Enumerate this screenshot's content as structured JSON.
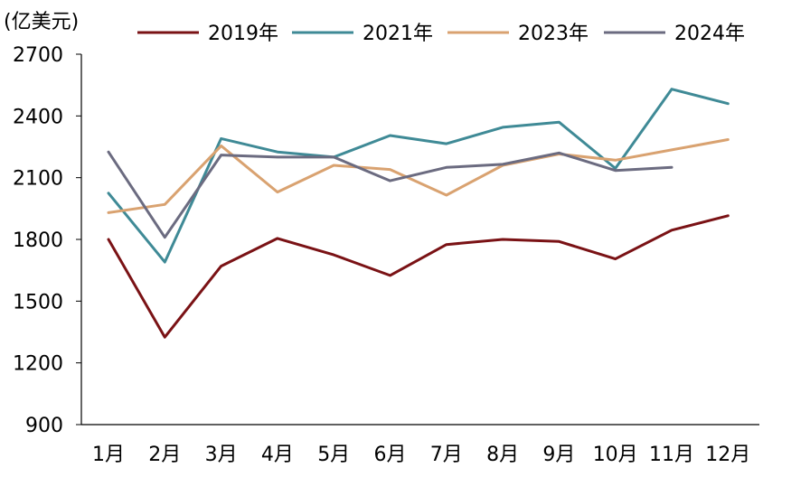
{
  "chart_data": {
    "type": "line",
    "unit_label": "(亿美元)",
    "categories": [
      "1月",
      "2月",
      "3月",
      "4月",
      "5月",
      "6月",
      "7月",
      "8月",
      "9月",
      "10月",
      "11月",
      "12月"
    ],
    "y_ticks": [
      "900",
      "1200",
      "1500",
      "1800",
      "2100",
      "2400",
      "2700"
    ],
    "ylim": [
      900,
      2700
    ],
    "grid": false,
    "legend_position": "top",
    "series": [
      {
        "name": "2019年",
        "color": "#7a1215",
        "values": [
          1800,
          1325,
          1670,
          1805,
          1725,
          1625,
          1775,
          1800,
          1790,
          1705,
          1845,
          1915
        ]
      },
      {
        "name": "2021年",
        "color": "#3f8a96",
        "values": [
          2025,
          1690,
          2290,
          2225,
          2200,
          2305,
          2265,
          2345,
          2370,
          2145,
          2530,
          2460
        ]
      },
      {
        "name": "2023年",
        "color": "#d9a270",
        "values": [
          1930,
          1970,
          2255,
          2030,
          2160,
          2140,
          2015,
          2160,
          2215,
          2185,
          2235,
          2285
        ]
      },
      {
        "name": "2024年",
        "color": "#6b6b80",
        "values": [
          2225,
          1810,
          2210,
          2200,
          2200,
          2085,
          2150,
          2165,
          2220,
          2135,
          2150,
          null
        ]
      }
    ]
  }
}
